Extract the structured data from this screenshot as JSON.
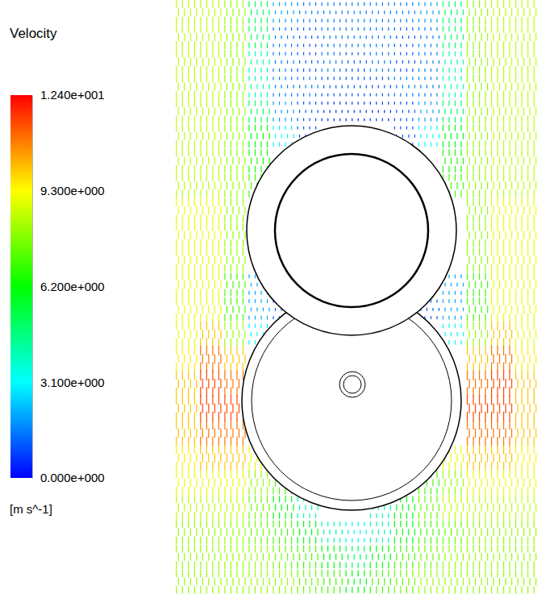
{
  "chart_data": {
    "type": "vector_field",
    "title": "Velocity",
    "colorbar_unit": "[m s^-1]",
    "color_range": [
      0,
      12.4
    ],
    "color_ticks": [
      {
        "value": 0,
        "label": "0.000e+000"
      },
      {
        "value": 3.1,
        "label": "3.100e+000"
      },
      {
        "value": 6.2,
        "label": "6.200e+000"
      },
      {
        "value": 9.3,
        "label": "9.300e+000"
      },
      {
        "value": 12.4,
        "label": "1.240e+001"
      }
    ],
    "cells": [
      [
        8.5,
        8.5,
        8,
        5,
        2,
        1.5,
        1.5,
        1.5,
        1.5,
        1.5,
        2,
        5,
        8,
        8.5,
        8.5
      ],
      [
        8.5,
        8.5,
        8,
        5,
        1.5,
        1,
        1.5,
        1.5,
        1.5,
        1,
        1.5,
        5,
        8,
        8.5,
        8.5
      ],
      [
        8.5,
        8.5,
        8,
        4,
        1.5,
        1,
        1.5,
        1,
        1.5,
        1,
        1.5,
        4,
        8,
        8.5,
        8.5
      ],
      [
        8.5,
        8.5,
        8,
        4,
        1.5,
        1.5,
        1,
        1,
        1,
        1.5,
        1.5,
        4,
        8,
        8.5,
        8.5
      ],
      [
        8.5,
        8.5,
        8,
        5,
        2,
        1,
        0.5,
        0.5,
        0.5,
        1,
        2,
        5,
        8,
        8.5,
        8.5
      ],
      [
        8.5,
        8.5,
        8,
        6,
        3,
        1,
        null,
        null,
        null,
        1,
        3,
        6,
        8,
        8.5,
        8.5
      ],
      [
        8.5,
        8.5,
        8,
        6.5,
        null,
        null,
        null,
        null,
        null,
        null,
        null,
        6.5,
        8,
        8.5,
        8.5
      ],
      [
        8.5,
        8.5,
        8,
        7,
        null,
        null,
        null,
        null,
        null,
        null,
        null,
        7,
        8,
        8.5,
        8.5
      ],
      [
        9,
        9,
        8,
        null,
        null,
        null,
        null,
        null,
        null,
        null,
        null,
        null,
        8,
        9,
        9
      ],
      [
        9,
        9,
        8,
        null,
        null,
        null,
        null,
        null,
        null,
        null,
        null,
        null,
        8,
        9,
        9
      ],
      [
        9,
        9,
        8,
        null,
        null,
        null,
        null,
        null,
        null,
        null,
        null,
        null,
        8,
        9,
        9
      ],
      [
        9,
        9,
        7,
        2,
        null,
        null,
        null,
        null,
        null,
        null,
        null,
        2,
        7,
        9,
        9
      ],
      [
        9,
        9,
        7,
        2,
        1,
        null,
        null,
        null,
        null,
        null,
        1,
        2,
        7,
        9,
        9
      ],
      [
        9,
        10,
        8,
        3,
        null,
        null,
        null,
        null,
        null,
        null,
        null,
        3,
        8,
        10,
        9
      ],
      [
        9.5,
        11,
        10,
        null,
        null,
        null,
        null,
        null,
        null,
        null,
        null,
        null,
        10,
        11,
        9.5
      ],
      [
        10,
        11.5,
        11,
        null,
        null,
        null,
        null,
        null,
        null,
        null,
        null,
        null,
        11,
        11.5,
        10
      ],
      [
        10,
        11.5,
        11.5,
        null,
        null,
        null,
        null,
        null,
        null,
        null,
        null,
        null,
        11.5,
        11.5,
        10
      ],
      [
        10,
        11,
        11,
        null,
        null,
        null,
        null,
        null,
        null,
        null,
        null,
        null,
        11,
        11,
        10
      ],
      [
        9.5,
        10,
        10,
        9,
        null,
        null,
        null,
        null,
        null,
        null,
        null,
        9,
        10,
        10,
        9.5
      ],
      [
        9,
        9,
        9,
        8,
        7,
        null,
        null,
        null,
        null,
        null,
        7,
        8,
        9,
        9,
        9
      ],
      [
        8.5,
        8.5,
        8.5,
        7.5,
        6,
        4,
        null,
        null,
        4,
        6,
        7.5,
        8.5,
        8.5,
        8.5,
        8.5
      ],
      [
        8,
        8,
        8,
        7.5,
        7,
        6,
        4,
        3,
        4,
        6,
        7,
        7.5,
        8,
        8,
        8
      ],
      [
        8,
        8,
        8,
        8,
        7.5,
        7,
        6,
        5,
        6,
        7,
        7.5,
        8,
        8,
        8,
        8
      ],
      [
        8,
        8,
        8,
        8,
        8,
        7.5,
        7,
        6,
        7,
        7.5,
        8,
        8,
        8,
        8,
        8
      ]
    ]
  }
}
